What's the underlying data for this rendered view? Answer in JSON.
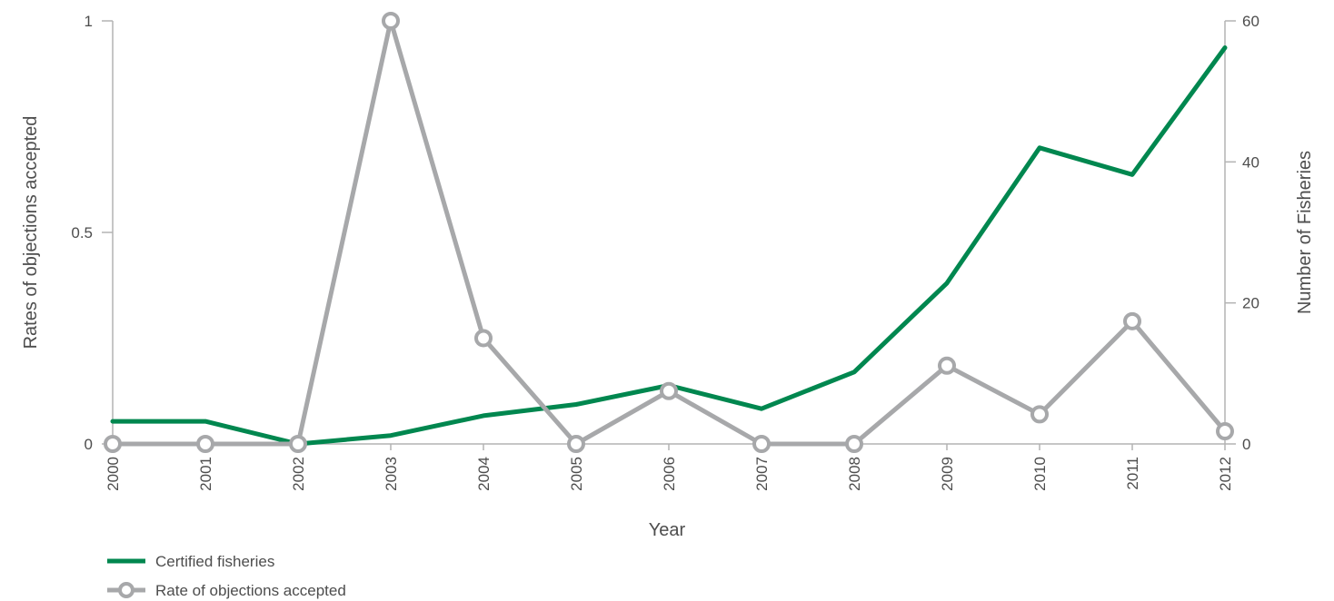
{
  "chart_data": {
    "type": "line",
    "x": [
      "2000",
      "2001",
      "2002",
      "2003",
      "2004",
      "2005",
      "2006",
      "2007",
      "2008",
      "2009",
      "2010",
      "2011",
      "2012"
    ],
    "xlabel": "Year",
    "y_left": {
      "label": "Rates of objections accepted",
      "range": [
        0,
        1
      ],
      "ticks": [
        "0",
        "0.5",
        "1"
      ],
      "tick_values": [
        0,
        0.5,
        1
      ]
    },
    "y_right": {
      "label": "Number of Fisheries",
      "range": [
        0,
        60
      ],
      "ticks": [
        "0",
        "20",
        "40",
        "60"
      ],
      "tick_values": [
        0,
        20,
        40,
        60
      ]
    },
    "series": [
      {
        "name": "Certified fisheries",
        "axis": "right",
        "color": "#00874f",
        "marker": "none",
        "values": [
          3.2,
          3.2,
          0,
          1.2,
          4.0,
          5.6,
          8.3,
          5.0,
          10.2,
          22.8,
          42.0,
          38.2,
          56.2
        ]
      },
      {
        "name": "Rate of objections accepted",
        "axis": "left",
        "color": "#a7a8aa",
        "marker": "circle",
        "values": [
          0,
          0,
          0,
          1.0,
          0.25,
          0,
          0.125,
          0,
          0,
          0.185,
          0.07,
          0.29,
          0.03
        ]
      }
    ],
    "grid": false,
    "legend": "bottom-left"
  }
}
